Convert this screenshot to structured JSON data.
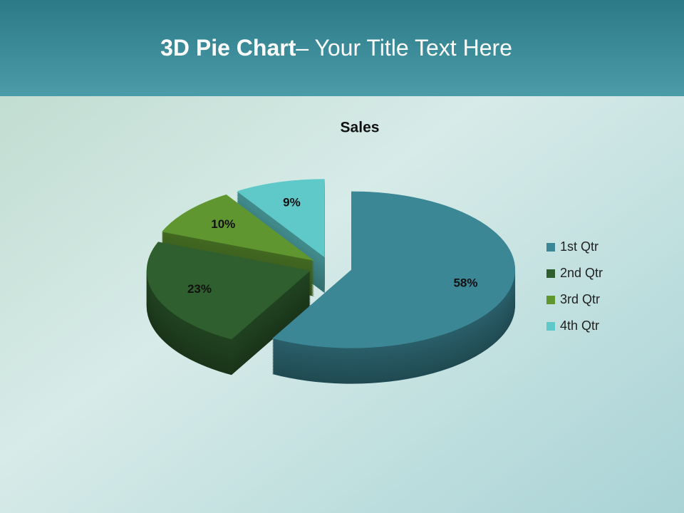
{
  "slide": {
    "title_bold": "3D Pie Chart",
    "title_rest": "– Your Title Text Here"
  },
  "chart_data": {
    "type": "pie",
    "title": "Sales",
    "categories": [
      "1st Qtr",
      "2nd Qtr",
      "3rd Qtr",
      "4th Qtr"
    ],
    "values": [
      58,
      23,
      10,
      9
    ],
    "value_labels": [
      "58%",
      "23%",
      "10%",
      "9%"
    ],
    "colors": [
      "#3b8796",
      "#2f5f2f",
      "#5f9630",
      "#5fc9ca"
    ],
    "legend": "right"
  }
}
